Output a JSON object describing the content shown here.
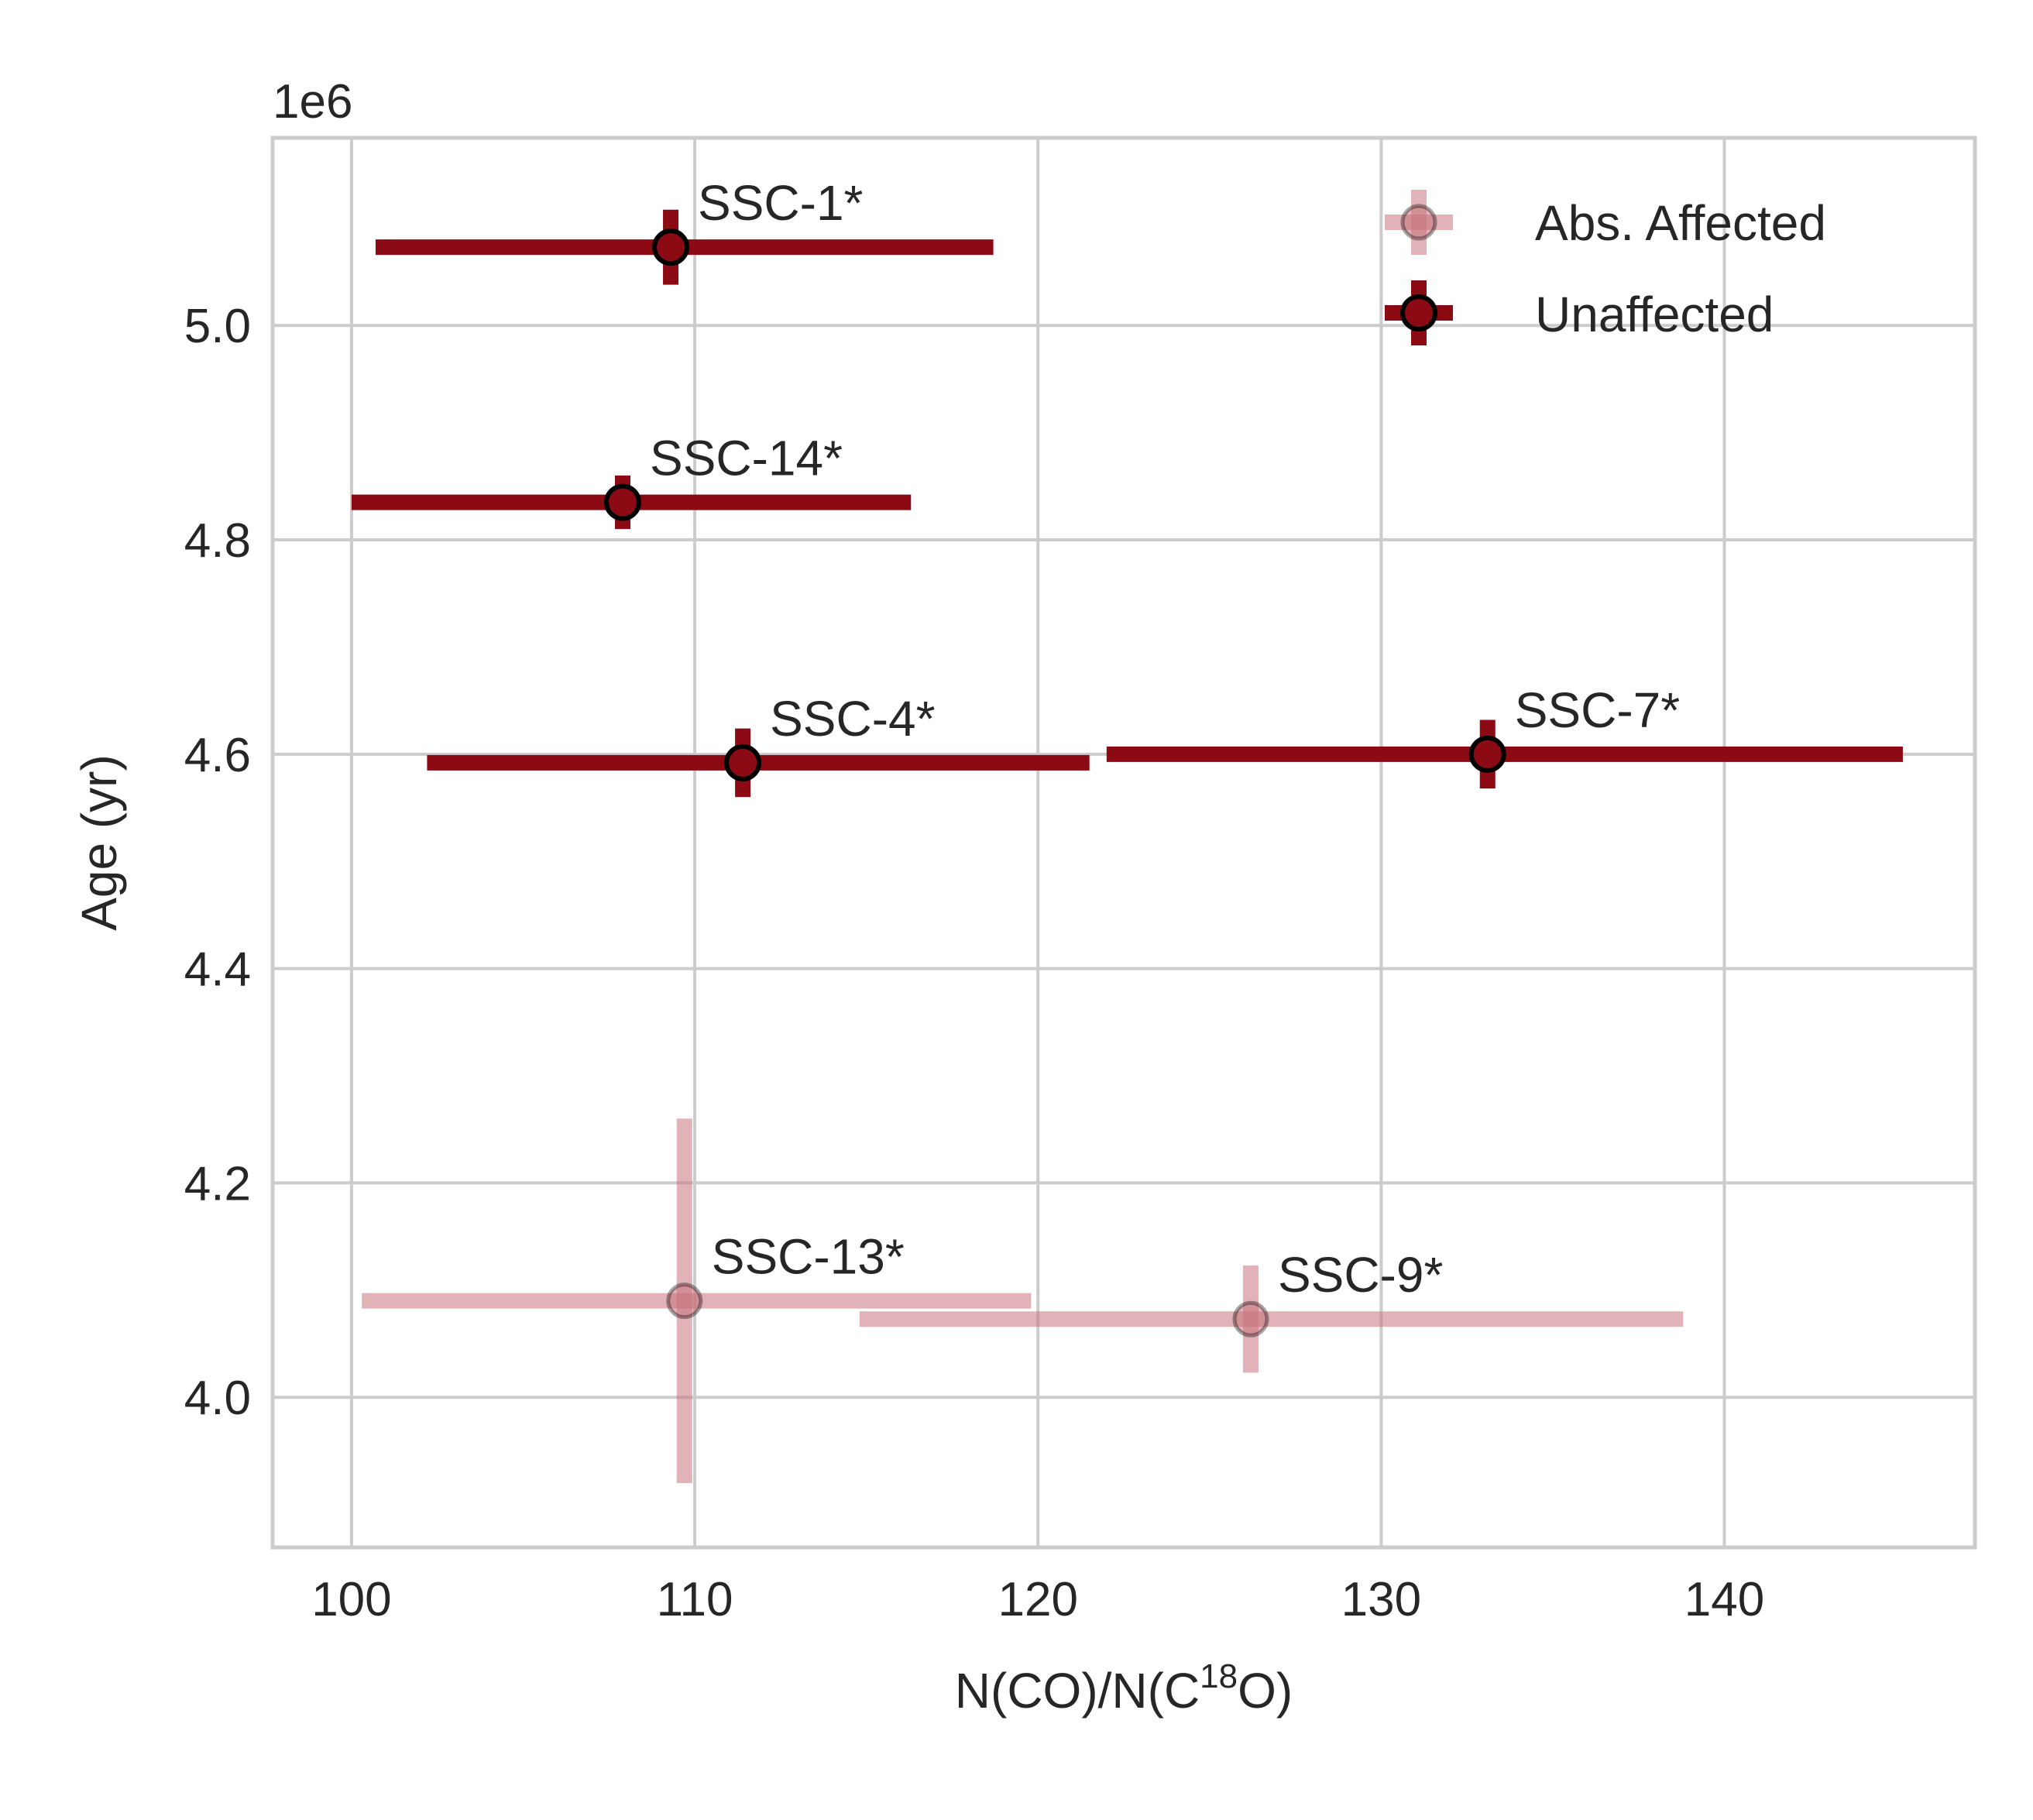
{
  "chart_data": {
    "type": "scatter",
    "title": "",
    "xlabel_main": "N(CO)/N(C",
    "xlabel_sup": "18",
    "xlabel_end": "O)",
    "ylabel": "Age (yr)",
    "y_offset_text": "1e6",
    "xlim": [
      97.7,
      147.3
    ],
    "ylim": [
      3.86,
      5.175
    ],
    "xticks": [
      100,
      110,
      120,
      130,
      140
    ],
    "xtick_labels": [
      "100",
      "110",
      "120",
      "130",
      "140"
    ],
    "yticks": [
      4.0,
      4.2,
      4.4,
      4.6,
      4.8,
      5.0
    ],
    "ytick_labels": [
      "4.0",
      "4.2",
      "4.4",
      "4.6",
      "4.8",
      "5.0"
    ],
    "grid": true,
    "legend_position": "top-right",
    "colors": {
      "unaffected": "#8b0a14",
      "affected": "#c8727c",
      "marker_edge": "#000000"
    },
    "series": [
      {
        "name": "Abs. Affected",
        "style": "affected",
        "points": [
          {
            "label": "SSC-13*",
            "x": 109.7,
            "y": 4.09,
            "xerr": [
              9.4,
              10.1
            ],
            "yerr": [
              0.17,
              0.17
            ]
          },
          {
            "label": "SSC-9*",
            "x": 126.2,
            "y": 4.073,
            "xerr": [
              11.4,
              12.6
            ],
            "yerr": [
              0.05,
              0.05
            ]
          }
        ]
      },
      {
        "name": "Unaffected",
        "style": "unaffected",
        "points": [
          {
            "label": "SSC-1*",
            "x": 109.3,
            "y": 5.073,
            "xerr": [
              8.6,
              9.4
            ],
            "yerr": [
              0.035,
              0.035
            ]
          },
          {
            "label": "SSC-14*",
            "x": 107.9,
            "y": 4.835,
            "xerr": [
              7.9,
              8.4
            ],
            "yerr": [
              0.025,
              0.025
            ]
          },
          {
            "label": "SSC-4*",
            "x": 111.4,
            "y": 4.592,
            "xerr": [
              9.2,
              10.1
            ],
            "yerr": [
              0.032,
              0.032
            ]
          },
          {
            "label": "SSC-7*",
            "x": 133.1,
            "y": 4.6,
            "xerr": [
              11.1,
              12.1
            ],
            "yerr": [
              0.032,
              0.032
            ]
          }
        ]
      }
    ]
  }
}
